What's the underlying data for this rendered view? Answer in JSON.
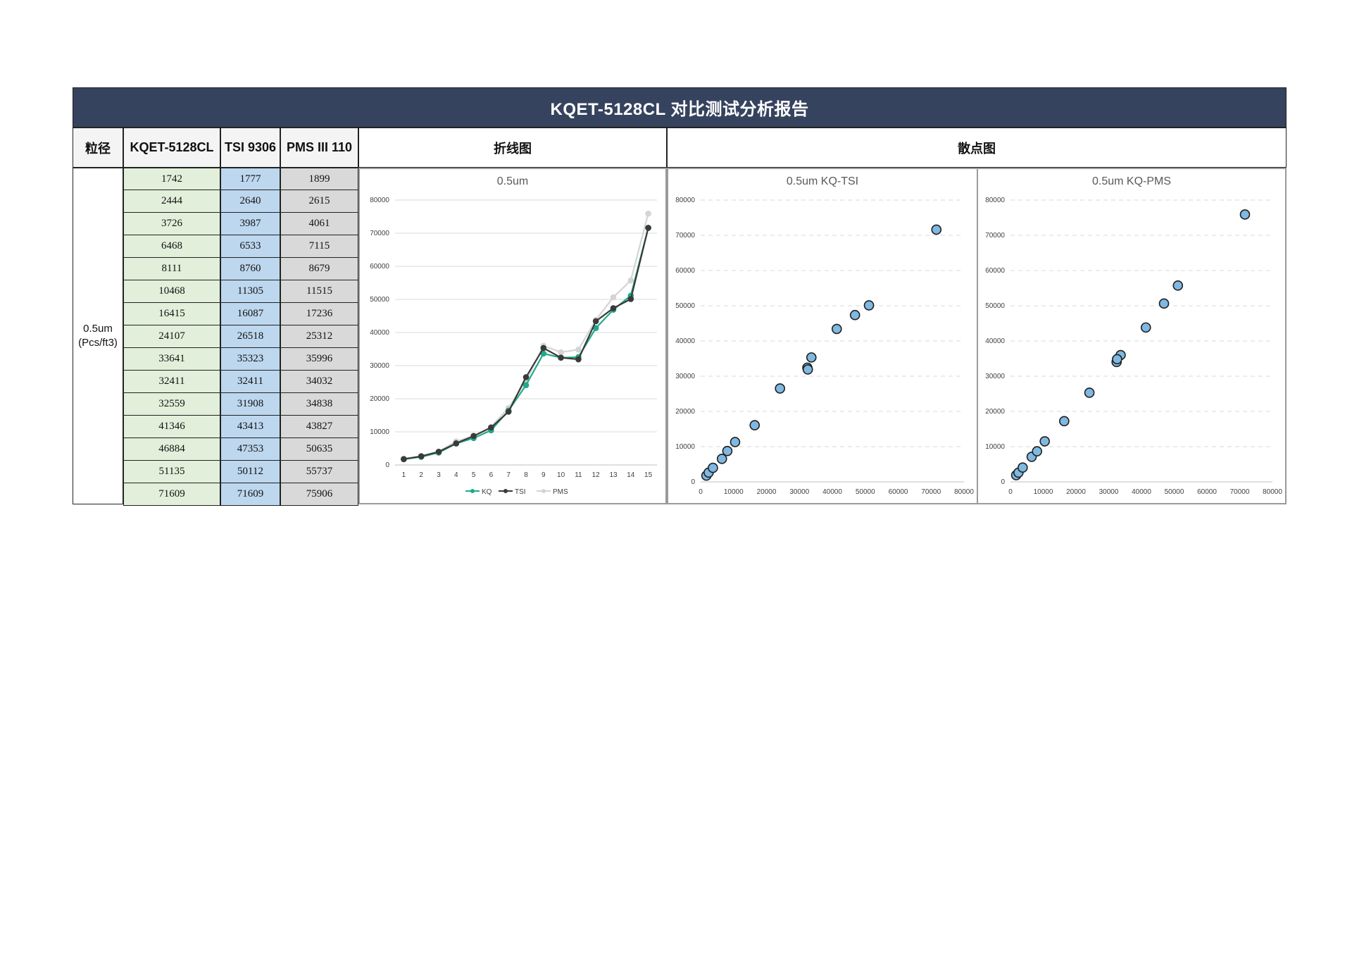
{
  "report": {
    "title": "KQET-5128CL 对比测试分析报告",
    "headers": {
      "size": "粒径",
      "kq": "KQET-5128CL",
      "tsi": "TSI 9306",
      "pms": "PMS III 110",
      "line_section": "折线图",
      "scatter_section": "散点图"
    },
    "size_label_1": "0.5um",
    "size_label_2": "(Pcs/ft3)",
    "kq_values": [
      "1742",
      "2444",
      "3726",
      "6468",
      "8111",
      "10468",
      "16415",
      "24107",
      "33641",
      "32411",
      "32559",
      "41346",
      "46884",
      "51135",
      "71609"
    ],
    "tsi_values": [
      "1777",
      "2640",
      "3987",
      "6533",
      "8760",
      "11305",
      "16087",
      "26518",
      "35323",
      "32411",
      "31908",
      "43413",
      "47353",
      "50112",
      "71609"
    ],
    "pms_values": [
      "1899",
      "2615",
      "4061",
      "7115",
      "8679",
      "11515",
      "17236",
      "25312",
      "35996",
      "34032",
      "34838",
      "43827",
      "50635",
      "55737",
      "75906"
    ]
  },
  "chart_data": [
    {
      "type": "line",
      "title": "0.5um",
      "x": [
        1,
        2,
        3,
        4,
        5,
        6,
        7,
        8,
        9,
        10,
        11,
        12,
        13,
        14,
        15
      ],
      "ylim": [
        0,
        80000
      ],
      "yticks": [
        0,
        10000,
        20000,
        30000,
        40000,
        50000,
        60000,
        70000,
        80000
      ],
      "grid": true,
      "legend": "bottom",
      "series": [
        {
          "name": "KQ",
          "color": "#20a98a",
          "values": [
            1742,
            2444,
            3726,
            6468,
            8111,
            10468,
            16415,
            24107,
            33641,
            32411,
            32559,
            41346,
            46884,
            51135,
            71609
          ]
        },
        {
          "name": "TSI",
          "color": "#3a3a3a",
          "values": [
            1777,
            2640,
            3987,
            6533,
            8760,
            11305,
            16087,
            26518,
            35323,
            32411,
            31908,
            43413,
            47353,
            50112,
            71609
          ]
        },
        {
          "name": "PMS",
          "color": "#d4d4d4",
          "values": [
            1899,
            2615,
            4061,
            7115,
            8679,
            11515,
            17236,
            25312,
            35996,
            34032,
            34838,
            43827,
            50635,
            55737,
            75906
          ]
        }
      ]
    },
    {
      "type": "scatter",
      "title": "0.5um  KQ-TSI",
      "xlim": [
        0,
        80000
      ],
      "ylim": [
        0,
        80000
      ],
      "ticks": [
        0,
        10000,
        20000,
        30000,
        40000,
        50000,
        60000,
        70000,
        80000
      ],
      "grid": true,
      "color": "#7fb8e1",
      "points": [
        [
          1742,
          1777
        ],
        [
          2444,
          2640
        ],
        [
          3726,
          3987
        ],
        [
          6468,
          6533
        ],
        [
          8111,
          8760
        ],
        [
          10468,
          11305
        ],
        [
          16415,
          16087
        ],
        [
          24107,
          26518
        ],
        [
          33641,
          35323
        ],
        [
          32411,
          32411
        ],
        [
          32559,
          31908
        ],
        [
          41346,
          43413
        ],
        [
          46884,
          47353
        ],
        [
          51135,
          50112
        ],
        [
          71609,
          71609
        ]
      ]
    },
    {
      "type": "scatter",
      "title": "0.5um  KQ-PMS",
      "xlim": [
        0,
        80000
      ],
      "ylim": [
        0,
        80000
      ],
      "ticks": [
        0,
        10000,
        20000,
        30000,
        40000,
        50000,
        60000,
        70000,
        80000
      ],
      "grid": true,
      "color": "#7fb8e1",
      "points": [
        [
          1742,
          1899
        ],
        [
          2444,
          2615
        ],
        [
          3726,
          4061
        ],
        [
          6468,
          7115
        ],
        [
          8111,
          8679
        ],
        [
          10468,
          11515
        ],
        [
          16415,
          17236
        ],
        [
          24107,
          25312
        ],
        [
          33641,
          35996
        ],
        [
          32411,
          34032
        ],
        [
          32559,
          34838
        ],
        [
          41346,
          43827
        ],
        [
          46884,
          50635
        ],
        [
          51135,
          55737
        ],
        [
          71609,
          75906
        ]
      ]
    }
  ]
}
